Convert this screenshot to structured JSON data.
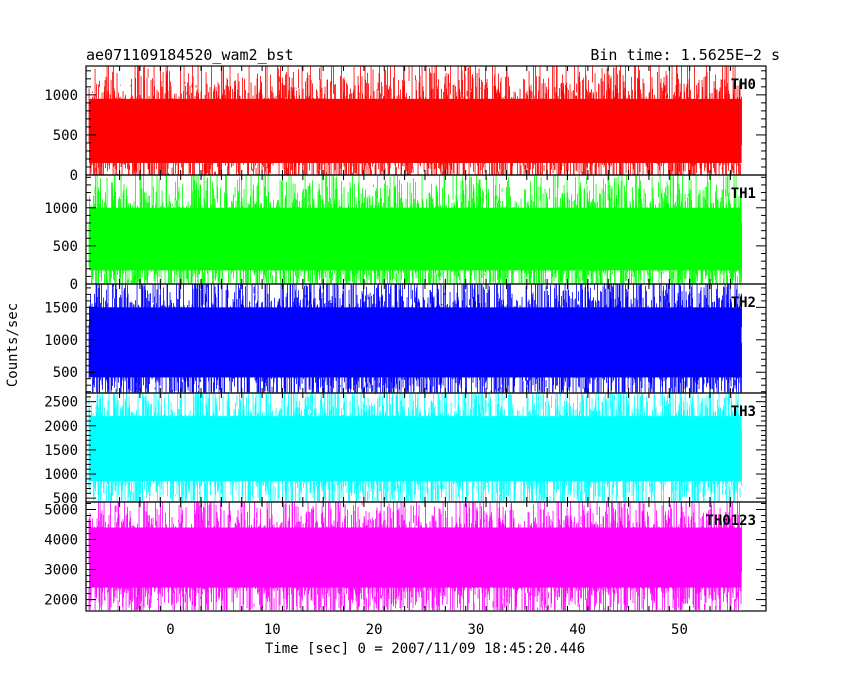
{
  "header": {
    "left_title": "ae071109184520_wam2_bst",
    "right_title": "Bin time: 1.5625E−2 s"
  },
  "chart_data": {
    "type": "line",
    "xlabel": "Time [sec] 0 = 2007/11/09 18:45:20.446",
    "ylabel": "Counts/sec",
    "xlim": [
      -8.3,
      58.5
    ],
    "data_x_range": [
      -8.0,
      56.1
    ],
    "x_ticks": [
      0,
      10,
      20,
      30,
      40,
      50
    ],
    "x_tick_labels": [
      "0",
      "10",
      "20",
      "30",
      "40",
      "50"
    ],
    "panels": [
      {
        "label": "TH0",
        "color": "#ff0000",
        "ylim": [
          0,
          1360
        ],
        "y_ticks": [
          0,
          500,
          1000
        ],
        "y_tick_labels": [
          "0",
          "500",
          "1000"
        ],
        "mean": 550,
        "band_low": 150,
        "band_high": 950,
        "peak_low": 0,
        "peak_high": 1360
      },
      {
        "label": "TH1",
        "color": "#00ff00",
        "ylim": [
          0,
          1430
        ],
        "y_ticks": [
          0,
          500,
          1000
        ],
        "y_tick_labels": [
          "0",
          "500",
          "1000"
        ],
        "mean": 580,
        "band_low": 180,
        "band_high": 1000,
        "peak_low": 10,
        "peak_high": 1430
      },
      {
        "label": "TH2",
        "color": "#0000ff",
        "ylim": [
          180,
          1860
        ],
        "y_ticks": [
          500,
          1000,
          1500
        ],
        "y_tick_labels": [
          "500",
          "1000",
          "1500"
        ],
        "mean": 950,
        "band_low": 420,
        "band_high": 1500,
        "peak_low": 190,
        "peak_high": 1860
      },
      {
        "label": "TH3",
        "color": "#00ffff",
        "ylim": [
          420,
          2680
        ],
        "y_ticks": [
          500,
          1000,
          1500,
          2000,
          2500
        ],
        "y_tick_labels": [
          "500",
          "1000",
          "1500",
          "2000",
          "2500"
        ],
        "mean": 1500,
        "band_low": 850,
        "band_high": 2200,
        "peak_low": 440,
        "peak_high": 2680
      },
      {
        "label": "TH0123",
        "color": "#ff00ff",
        "ylim": [
          1620,
          5250
        ],
        "y_ticks": [
          2000,
          3000,
          4000,
          5000
        ],
        "y_tick_labels": [
          "2000",
          "3000",
          "4000",
          "5000"
        ],
        "mean": 3300,
        "band_low": 2400,
        "band_high": 4400,
        "peak_low": 1650,
        "peak_high": 5250
      }
    ]
  }
}
